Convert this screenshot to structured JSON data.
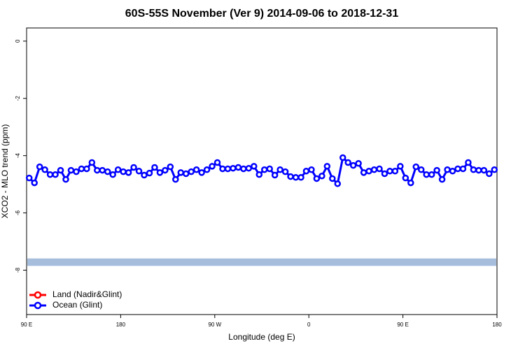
{
  "chart_data": {
    "type": "line",
    "title": "60S-55S November (Ver 9)   2014-09-06 to 2018-12-31",
    "xlabel": "Longitude (deg E)",
    "ylabel": "XCO2 - MLO trend (ppm)",
    "xlim": [
      90,
      540
    ],
    "ylim": [
      -9.55,
      0.46
    ],
    "xticks": [
      {
        "value": 90,
        "label": "90 E"
      },
      180,
      {
        "value": 270,
        "label": "90 W"
      },
      {
        "value": 360,
        "label": "0"
      },
      {
        "value": 450,
        "label": "90 E"
      },
      {
        "value": 540,
        "label": "180"
      }
    ],
    "yticks": [
      0,
      -2,
      -4,
      -6,
      -8
    ],
    "band": {
      "ymin": -7.85,
      "ymax": -7.59,
      "color": "#a6bddb"
    },
    "legend": "bottom-left",
    "x": [
      92.5,
      97.5,
      102.5,
      107.5,
      112.5,
      117.5,
      122.5,
      127.5,
      132.5,
      137.5,
      142.5,
      147.5,
      152.5,
      157.5,
      162.5,
      167.5,
      172.5,
      177.5,
      182.5,
      187.5,
      192.5,
      197.5,
      202.5,
      207.5,
      212.5,
      217.5,
      222.5,
      227.5,
      232.5,
      237.5,
      242.5,
      247.5,
      252.5,
      257.5,
      262.5,
      267.5,
      272.5,
      277.5,
      282.5,
      287.5,
      292.5,
      297.5,
      302.5,
      307.5,
      312.5,
      317.5,
      322.5,
      327.5,
      332.5,
      337.5,
      342.5,
      347.5,
      352.5,
      357.5,
      362.5,
      367.5,
      372.5,
      377.5,
      382.5,
      387.5,
      392.5,
      397.5,
      402.5,
      407.5,
      412.5,
      417.5,
      422.5,
      427.5,
      432.5,
      437.5,
      442.5,
      447.5,
      452.5,
      457.5,
      462.5,
      467.5,
      472.5,
      477.5,
      482.5,
      487.5,
      492.5,
      497.5,
      502.5,
      507.5,
      512.5,
      517.5,
      522.5,
      527.5,
      532.5,
      537.5
    ],
    "series": [
      {
        "name": "Land (Nadir&Glint)",
        "color": "#ff0000",
        "values": [
          null,
          null,
          null,
          null,
          null,
          null,
          null,
          null,
          null,
          null,
          null,
          null,
          null,
          null,
          null,
          null,
          null,
          null,
          null,
          null,
          null,
          null,
          null,
          null,
          null,
          null,
          null,
          null,
          null,
          null,
          null,
          null,
          null,
          null,
          null,
          null,
          null,
          null,
          null,
          null,
          null,
          null,
          null,
          null,
          null,
          null,
          null,
          null,
          null,
          null,
          null,
          null,
          null,
          null,
          null,
          null,
          null,
          null,
          null,
          null,
          null,
          null,
          null,
          null,
          null,
          null,
          null,
          null,
          null,
          null,
          null,
          null,
          null,
          null,
          null,
          null,
          null,
          null,
          null,
          null,
          null,
          null,
          null,
          null,
          null,
          null,
          null,
          null,
          null,
          null
        ]
      },
      {
        "name": "Ocean (Glint)",
        "color": "#0000ff",
        "values": [
          -4.78,
          -4.95,
          -4.39,
          -4.49,
          -4.66,
          -4.66,
          -4.51,
          -4.83,
          -4.51,
          -4.56,
          -4.46,
          -4.46,
          -4.24,
          -4.51,
          -4.51,
          -4.56,
          -4.66,
          -4.49,
          -4.56,
          -4.59,
          -4.41,
          -4.54,
          -4.68,
          -4.61,
          -4.41,
          -4.59,
          -4.51,
          -4.39,
          -4.83,
          -4.59,
          -4.63,
          -4.56,
          -4.49,
          -4.59,
          -4.49,
          -4.37,
          -4.24,
          -4.46,
          -4.46,
          -4.44,
          -4.41,
          -4.46,
          -4.44,
          -4.37,
          -4.66,
          -4.49,
          -4.46,
          -4.68,
          -4.49,
          -4.56,
          -4.73,
          -4.76,
          -4.76,
          -4.54,
          -4.49,
          -4.8,
          -4.71,
          -4.37,
          -4.8,
          -4.98,
          -4.07,
          -4.24,
          -4.34,
          -4.27,
          -4.59,
          -4.54,
          -4.49,
          -4.46,
          -4.63,
          -4.54,
          -4.54,
          -4.37,
          -4.78,
          -4.95,
          -4.39,
          -4.49,
          -4.66,
          -4.66,
          -4.51,
          -4.83,
          -4.49,
          -4.54,
          -4.46,
          -4.46,
          -4.24,
          -4.49,
          -4.51,
          -4.51,
          -4.63,
          -4.49
        ]
      }
    ]
  }
}
